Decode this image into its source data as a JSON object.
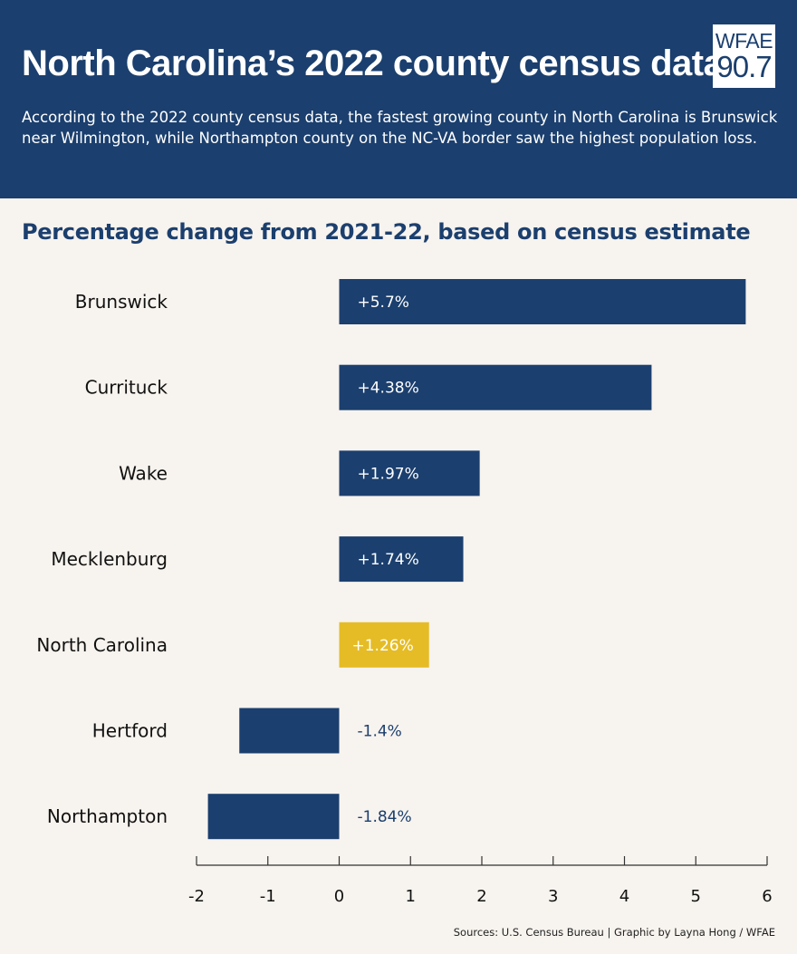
{
  "header": {
    "title": "North Carolina’s 2022 county census data",
    "subtitle": "According to the 2022 county census data,  the fastest growing county in North Carolina is Brunswick near Wilmington, while Northampton county on the NC-VA border saw the highest population loss.",
    "logo_top": "WFAE",
    "logo_bottom": "90.7"
  },
  "colors": {
    "header_bg": "#1b3f6e",
    "bar": "#1b3f6e",
    "highlight_bar": "#e5bc25",
    "background": "#f7f3ee"
  },
  "chart_data": {
    "type": "bar",
    "orientation": "horizontal",
    "title": "Percentage change from 2021-22, based on census estimate",
    "categories": [
      "Brunswick",
      "Currituck",
      "Wake",
      "Mecklenburg",
      "North Carolina",
      "Hertford",
      "Northampton"
    ],
    "values": [
      5.7,
      4.38,
      1.97,
      1.74,
      1.26,
      -1.4,
      -1.84
    ],
    "labels": [
      "+5.7%",
      "+4.38%",
      "+1.97%",
      "+1.74%",
      "+1.26%",
      "-1.4%",
      "-1.84%"
    ],
    "highlight": [
      "North Carolina"
    ],
    "xlim": [
      -2,
      6
    ],
    "xticks": [
      "-2",
      "-1",
      "0",
      "1",
      "2",
      "3",
      "4",
      "5",
      "6"
    ],
    "xlabel": "",
    "ylabel": "",
    "grid": false
  },
  "footer": {
    "source": "Sources: U.S. Census Bureau | Graphic by Layna Hong / WFAE"
  }
}
